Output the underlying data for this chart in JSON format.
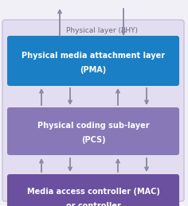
{
  "bg_color": "#f2f0f7",
  "outer_box_color": "#e2ddf0",
  "outer_box_edge": "#c8c0dc",
  "pma_box_color": "#1a7fc4",
  "pcs_box_color": "#8878b8",
  "mac_box_color": "#6b50a0",
  "arrow_color": "#8888a0",
  "text_color_white": "#ffffff",
  "text_color_gray": "#6a6a80",
  "phy_label": "Physical layer (PHY)",
  "pma_line1": "Physical media attachment layer",
  "pma_line2": "(PMA)",
  "pcs_line1": "Physical coding sub-layer",
  "pcs_line2": "(PCS)",
  "mac_line1": "Media access controller (MAC)",
  "mac_line2": "or controller",
  "figsize": [
    2.36,
    2.59
  ],
  "dpi": 100
}
